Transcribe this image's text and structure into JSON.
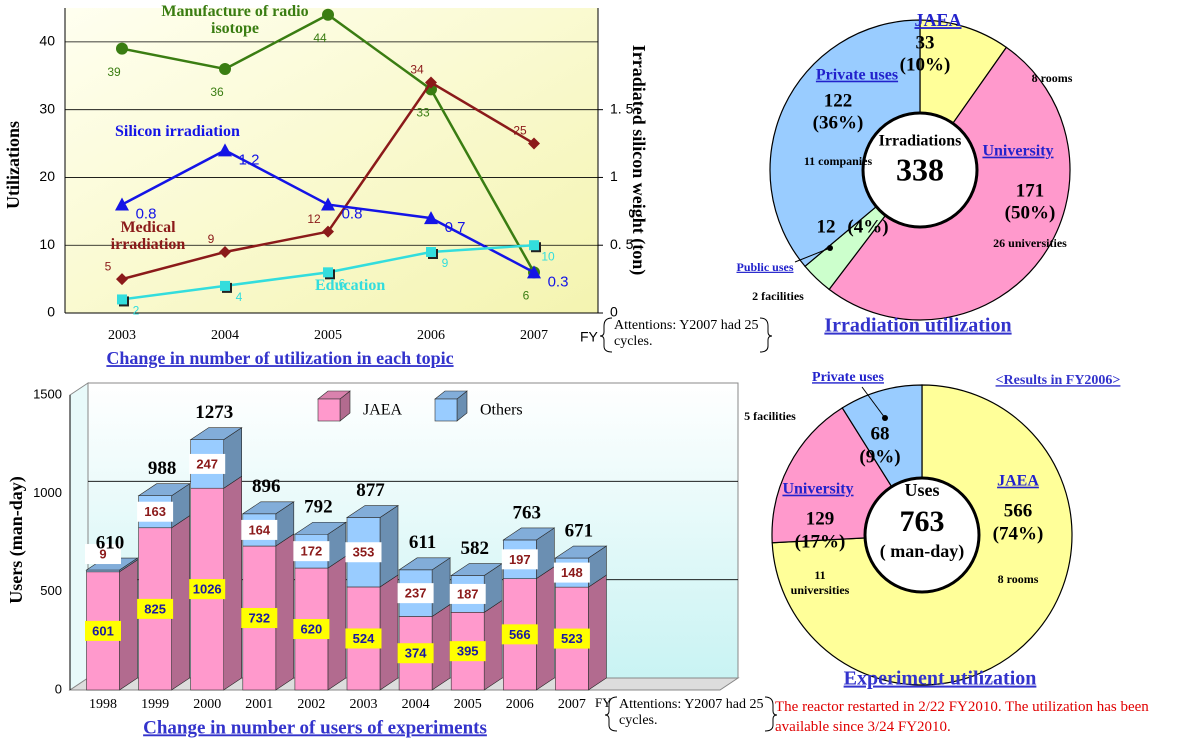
{
  "chart_data": [
    {
      "type": "line",
      "title": "Change in number of utilization in each topic",
      "x_label": "FY",
      "y_label": "Utilizations",
      "y2_label": "Irradiated silicon weight (ton)",
      "note": "Attentions: Y2007 had 25 cycles.",
      "categories": [
        "2003",
        "2004",
        "2005",
        "2006",
        "2007"
      ],
      "ylim": [
        0,
        45
      ],
      "yticks": [
        0,
        10,
        20,
        30,
        40
      ],
      "y2lim": [
        0,
        2.25
      ],
      "y2ticks": [
        0,
        {
          "value": 0.5,
          "label": "0. 5"
        },
        1,
        {
          "value": 1.5,
          "label": "1. 5"
        }
      ],
      "grid": true,
      "series": [
        {
          "name": "Manufacture of radio isotope",
          "color": "#3a7d12",
          "marker": "circle",
          "values": [
            39,
            36,
            44,
            33,
            6
          ]
        },
        {
          "name": "Medical irradiation",
          "color": "#8b1a1a",
          "marker": "diamond",
          "values": [
            5,
            9,
            12,
            34,
            25
          ]
        },
        {
          "name": "Silicon irradiation",
          "color": "#1414e6",
          "marker": "triangle",
          "axis": "y2",
          "values": [
            0.8,
            1.2,
            0.8,
            0.7,
            0.3
          ]
        },
        {
          "name": "Education",
          "color": "#33dddd",
          "marker": "square",
          "values": [
            2,
            4,
            6,
            9,
            10
          ]
        }
      ]
    },
    {
      "type": "bar",
      "stacked": true,
      "title": "Change in number of users of experiments",
      "x_label": "FY",
      "y_label": "Users (man-day)",
      "note": "Attentions: Y2007 had 25 cycles.",
      "categories": [
        "1998",
        "1999",
        "2000",
        "2001",
        "2002",
        "2003",
        "2004",
        "2005",
        "2006",
        "2007"
      ],
      "ylim": [
        0,
        1500
      ],
      "yticks": [
        0,
        500,
        1000,
        1500
      ],
      "grid": true,
      "series": [
        {
          "name": "JAEA",
          "color": "#ff99cc",
          "values": [
            601,
            825,
            1026,
            732,
            620,
            524,
            374,
            395,
            566,
            523
          ]
        },
        {
          "name": "Others",
          "color": "#99ccff",
          "values": [
            9,
            163,
            247,
            164,
            172,
            353,
            237,
            187,
            197,
            148
          ]
        }
      ],
      "totals": [
        610,
        988,
        1273,
        896,
        792,
        877,
        611,
        582,
        763,
        671
      ]
    },
    {
      "type": "donut",
      "title": "Irradiation utilization",
      "center_label": "Irradiations",
      "total": 338,
      "categories": [
        "JAEA",
        "University",
        "Public uses",
        "Private uses"
      ],
      "values": [
        33,
        171,
        12,
        122
      ],
      "percent_labels": [
        "(10%)",
        "(50%)",
        "(4%)",
        "(36%)"
      ],
      "details": [
        "8 rooms",
        "26 universities",
        "2 facilities",
        "11 companies"
      ],
      "colors": [
        "#ffff99",
        "#ff99cc",
        "#ccffcc",
        "#99ccff"
      ]
    },
    {
      "type": "donut",
      "title": "Experiment utilization",
      "subtitle": "<Results in FY2006>",
      "center_label": "Uses",
      "total": 763,
      "center_unit": "( man-day)",
      "categories": [
        "JAEA",
        "University",
        "Private uses"
      ],
      "values": [
        566,
        129,
        68
      ],
      "percent_labels": [
        "(74%)",
        "(17%)",
        "(9%)"
      ],
      "details": [
        "8 rooms",
        "11 universities",
        "5 facilities"
      ],
      "colors": [
        "#ffff99",
        "#ff99cc",
        "#99ccff"
      ]
    }
  ],
  "footnote": "The reactor restarted in 2/22 FY2010. The utilization has been available since 3/24 FY2010."
}
